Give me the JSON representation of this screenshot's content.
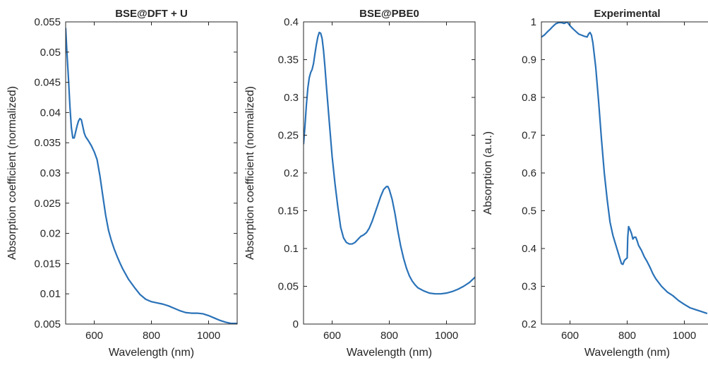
{
  "figure": {
    "background": "#ffffff",
    "line_color": "#2a72b8",
    "axis_color": "#262626"
  },
  "chart_data": [
    {
      "type": "line",
      "title": "BSE@DFT + U",
      "xlabel": "Wavelength (nm)",
      "ylabel": "Absorption coefficient (normalized)",
      "xlim": [
        500,
        1100
      ],
      "ylim": [
        0.005,
        0.055
      ],
      "xticks": [
        600,
        800,
        1000
      ],
      "yticks": [
        0.005,
        0.01,
        0.015,
        0.02,
        0.025,
        0.03,
        0.035,
        0.04,
        0.045,
        0.05,
        0.055
      ],
      "grid": false,
      "series": [
        {
          "x": [
            500,
            505,
            510,
            515,
            520,
            525,
            530,
            535,
            540,
            545,
            550,
            555,
            560,
            565,
            570,
            580,
            590,
            600,
            610,
            620,
            630,
            640,
            650,
            660,
            670,
            680,
            690,
            700,
            720,
            740,
            760,
            780,
            800,
            820,
            840,
            860,
            880,
            900,
            920,
            940,
            960,
            980,
            1000,
            1020,
            1040,
            1060,
            1080,
            1100
          ],
          "y": [
            0.054,
            0.0495,
            0.0455,
            0.041,
            0.0375,
            0.0358,
            0.0358,
            0.0368,
            0.0378,
            0.0386,
            0.039,
            0.0388,
            0.0377,
            0.0366,
            0.036,
            0.0353,
            0.0345,
            0.0335,
            0.0322,
            0.0295,
            0.0262,
            0.023,
            0.0205,
            0.0188,
            0.0174,
            0.0162,
            0.0151,
            0.0141,
            0.0124,
            0.0111,
            0.0099,
            0.0091,
            0.0087,
            0.0085,
            0.0083,
            0.008,
            0.0076,
            0.0072,
            0.0069,
            0.0068,
            0.0068,
            0.0067,
            0.0064,
            0.006,
            0.0056,
            0.0053,
            0.0051,
            0.0051
          ]
        }
      ]
    },
    {
      "type": "line",
      "title": "BSE@PBE0",
      "xlabel": "Wavelength (nm)",
      "ylabel": "Absorption coefficient (normalized)",
      "xlim": [
        500,
        1100
      ],
      "ylim": [
        0,
        0.4
      ],
      "xticks": [
        600,
        800,
        1000
      ],
      "yticks": [
        0,
        0.05,
        0.1,
        0.15,
        0.2,
        0.25,
        0.3,
        0.35,
        0.4
      ],
      "grid": false,
      "series": [
        {
          "x": [
            500,
            505,
            510,
            515,
            520,
            525,
            530,
            535,
            540,
            545,
            550,
            555,
            560,
            565,
            570,
            575,
            580,
            590,
            600,
            610,
            620,
            630,
            640,
            650,
            660,
            670,
            680,
            690,
            700,
            710,
            720,
            730,
            740,
            750,
            760,
            770,
            780,
            790,
            795,
            800,
            810,
            820,
            830,
            840,
            850,
            860,
            870,
            880,
            890,
            900,
            920,
            940,
            960,
            980,
            1000,
            1020,
            1040,
            1060,
            1080,
            1100
          ],
          "y": [
            0.238,
            0.262,
            0.29,
            0.312,
            0.326,
            0.333,
            0.337,
            0.345,
            0.358,
            0.37,
            0.38,
            0.386,
            0.385,
            0.378,
            0.362,
            0.34,
            0.315,
            0.268,
            0.222,
            0.186,
            0.155,
            0.128,
            0.114,
            0.108,
            0.106,
            0.106,
            0.108,
            0.112,
            0.116,
            0.118,
            0.121,
            0.127,
            0.136,
            0.147,
            0.158,
            0.169,
            0.178,
            0.182,
            0.182,
            0.178,
            0.165,
            0.146,
            0.123,
            0.103,
            0.087,
            0.074,
            0.064,
            0.057,
            0.052,
            0.048,
            0.044,
            0.041,
            0.04,
            0.04,
            0.041,
            0.043,
            0.046,
            0.05,
            0.055,
            0.062
          ]
        }
      ]
    },
    {
      "type": "line",
      "title": "Experimental",
      "xlabel": "Wavelength (nm)",
      "ylabel": "Absorption (a.u.)",
      "xlim": [
        500,
        1100
      ],
      "ylim": [
        0.2,
        1
      ],
      "xticks": [
        600,
        800,
        1000
      ],
      "yticks": [
        0.2,
        0.3,
        0.4,
        0.5,
        0.6,
        0.7,
        0.8,
        0.9,
        1
      ],
      "grid": false,
      "series": [
        {
          "x": [
            500,
            510,
            520,
            530,
            540,
            550,
            560,
            570,
            580,
            590,
            600,
            610,
            620,
            630,
            640,
            650,
            660,
            665,
            670,
            675,
            680,
            690,
            700,
            710,
            720,
            730,
            740,
            750,
            760,
            770,
            780,
            785,
            790,
            795,
            800,
            802,
            805,
            810,
            815,
            820,
            825,
            830,
            835,
            840,
            850,
            860,
            870,
            880,
            890,
            900,
            920,
            940,
            960,
            980,
            1000,
            1020,
            1040,
            1060,
            1080
          ],
          "y": [
            0.96,
            0.965,
            0.973,
            0.98,
            0.988,
            0.995,
            0.998,
            0.998,
            0.996,
            1.0,
            0.99,
            0.982,
            0.975,
            0.968,
            0.965,
            0.962,
            0.96,
            0.968,
            0.972,
            0.965,
            0.945,
            0.88,
            0.79,
            0.69,
            0.6,
            0.53,
            0.47,
            0.435,
            0.41,
            0.385,
            0.36,
            0.358,
            0.368,
            0.372,
            0.375,
            0.43,
            0.458,
            0.45,
            0.44,
            0.425,
            0.43,
            0.43,
            0.42,
            0.408,
            0.395,
            0.378,
            0.365,
            0.35,
            0.333,
            0.32,
            0.3,
            0.285,
            0.275,
            0.262,
            0.252,
            0.243,
            0.238,
            0.233,
            0.228
          ]
        }
      ]
    }
  ]
}
